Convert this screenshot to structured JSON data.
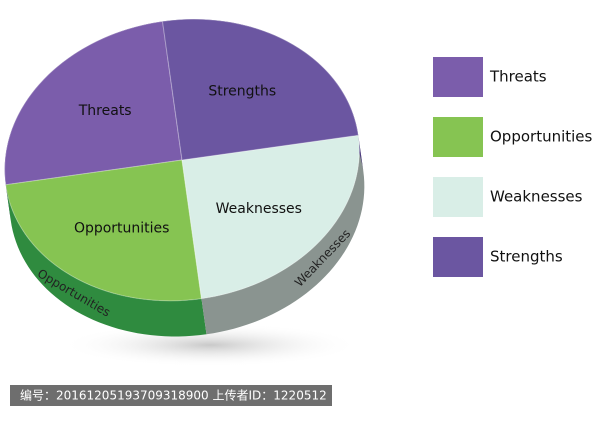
{
  "chart_data": {
    "type": "pie",
    "categories": [
      "Threats",
      "Opportunities",
      "Weaknesses",
      "Strengths"
    ],
    "values": [
      25,
      25,
      25,
      25
    ],
    "colors": [
      "#7b5dab",
      "#86c452",
      "#d9eee7",
      "#6b56a1"
    ],
    "side_colors": [
      "#4d3a80",
      "#2f8b3f",
      "#8a9490",
      "#4d3a80"
    ],
    "legend": "right"
  },
  "watermark": "编号：20161205193709318900 上传者ID：1220512"
}
